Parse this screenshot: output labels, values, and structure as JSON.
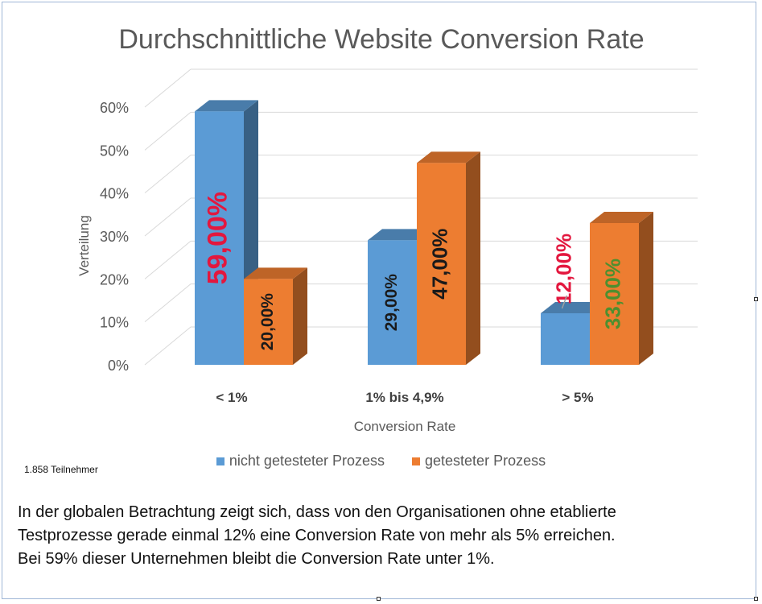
{
  "chart_data": {
    "type": "bar",
    "title": "Durchschnittliche Website Conversion Rate",
    "xlabel": "Conversion Rate",
    "ylabel": "Verteilung",
    "categories": [
      "< 1%",
      "1% bis 4,9%",
      "> 5%"
    ],
    "ylim": [
      0,
      60
    ],
    "yticks": [
      "0%",
      "10%",
      "20%",
      "30%",
      "40%",
      "50%",
      "60%"
    ],
    "grid": true,
    "legend_position": "bottom",
    "series": [
      {
        "name": "nicht getesteter Prozess",
        "values": [
          59,
          29,
          12
        ],
        "labels": [
          "59,00%",
          "29,00%",
          "12,00%"
        ],
        "color": "#5b9bd5",
        "label_colors": [
          "#e3173e",
          "#1a1a1a",
          "#e3173e"
        ]
      },
      {
        "name": "getesteter Prozess",
        "values": [
          20,
          47,
          33
        ],
        "labels": [
          "20,00%",
          "47,00%",
          "33,00%"
        ],
        "color": "#ed7d31",
        "label_colors": [
          "#1a1a1a",
          "#1a1a1a",
          "#4e8f2f"
        ]
      }
    ]
  },
  "note": "1.858 Teilnehmer",
  "caption": [
    "In der globalen Betrachtung zeigt sich, dass von den Organisationen ohne etablierte",
    "Testprozesse gerade einmal 12% eine Conversion Rate von mehr als 5% erreichen.",
    "Bei 59% dieser Unternehmen bleibt die Conversion Rate unter 1%."
  ]
}
